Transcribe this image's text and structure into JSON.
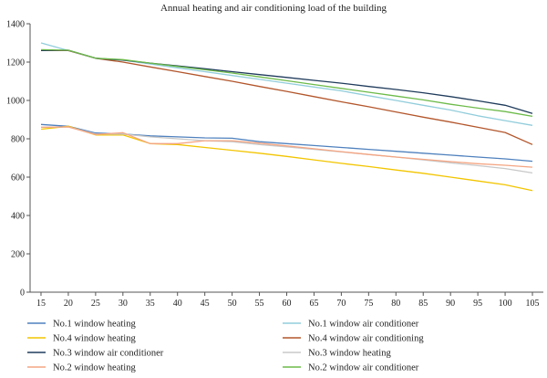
{
  "chart_data": {
    "type": "line",
    "title": "Annual heating and air conditioning load of the building",
    "xlabel": "",
    "ylabel": "",
    "x": [
      15,
      20,
      25,
      30,
      35,
      40,
      45,
      50,
      55,
      60,
      65,
      70,
      75,
      80,
      85,
      90,
      95,
      100,
      105
    ],
    "xlim": [
      13,
      107
    ],
    "ylim": [
      0,
      1400
    ],
    "yticks": [
      0,
      200,
      400,
      600,
      800,
      1000,
      1200,
      1400
    ],
    "grid": false,
    "legend_position": "bottom",
    "series": [
      {
        "name": "No.1 window heating",
        "color": "#4f81bd",
        "values": [
          875,
          865,
          830,
          825,
          815,
          810,
          805,
          803,
          785,
          775,
          765,
          755,
          745,
          735,
          725,
          715,
          705,
          695,
          683
        ]
      },
      {
        "name": "No.1 window air conditioner",
        "color": "#92cddc",
        "values": [
          1300,
          1260,
          1220,
          1210,
          1190,
          1170,
          1150,
          1130,
          1110,
          1090,
          1070,
          1050,
          1025,
          1000,
          975,
          950,
          920,
          895,
          870
        ]
      },
      {
        "name": "No.4 window heating",
        "color": "#f2c500",
        "values": [
          850,
          865,
          820,
          820,
          775,
          770,
          755,
          740,
          725,
          708,
          690,
          672,
          655,
          637,
          620,
          600,
          580,
          560,
          530
        ]
      },
      {
        "name": "No.4 window air conditioning",
        "color": "#b3562b",
        "values": [
          1260,
          1260,
          1220,
          1200,
          1175,
          1150,
          1125,
          1100,
          1073,
          1047,
          1020,
          993,
          967,
          940,
          913,
          887,
          860,
          833,
          770
        ]
      },
      {
        "name": "No.3 window air conditioner",
        "color": "#1f3b5b",
        "values": [
          1260,
          1262,
          1220,
          1210,
          1195,
          1180,
          1165,
          1150,
          1135,
          1120,
          1105,
          1090,
          1073,
          1057,
          1040,
          1020,
          998,
          975,
          932
        ]
      },
      {
        "name": "No.3 window heating",
        "color": "#c8c8c8",
        "values": [
          860,
          862,
          825,
          825,
          810,
          800,
          790,
          785,
          770,
          758,
          745,
          732,
          718,
          705,
          690,
          675,
          660,
          645,
          622
        ]
      },
      {
        "name": "No.2 window heating",
        "color": "#f4a582",
        "values": [
          860,
          862,
          822,
          832,
          775,
          775,
          790,
          790,
          777,
          763,
          748,
          733,
          718,
          705,
          693,
          681,
          670,
          662,
          652
        ]
      },
      {
        "name": "No.2 window air conditioner",
        "color": "#6dbb4a",
        "values": [
          1265,
          1262,
          1220,
          1213,
          1195,
          1177,
          1160,
          1143,
          1123,
          1103,
          1083,
          1063,
          1043,
          1023,
          1003,
          980,
          960,
          942,
          917
        ]
      }
    ]
  }
}
